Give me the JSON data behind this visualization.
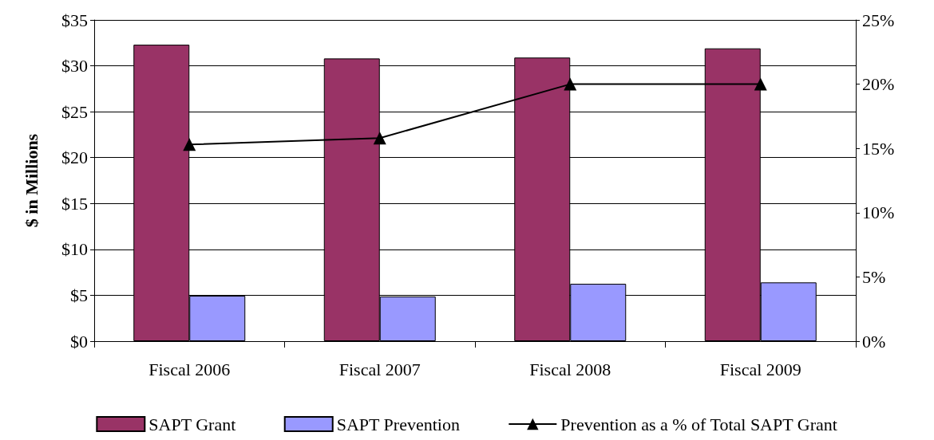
{
  "chart_data": {
    "type": "bar",
    "categories": [
      "Fiscal 2006",
      "Fiscal 2007",
      "Fiscal 2008",
      "Fiscal 2009"
    ],
    "ylabel": "$ in Millions",
    "ylim": [
      0,
      35
    ],
    "yticks": [
      {
        "value": 0,
        "label": "$0"
      },
      {
        "value": 5,
        "label": "$5"
      },
      {
        "value": 10,
        "label": "$10"
      },
      {
        "value": 15,
        "label": "$15"
      },
      {
        "value": 20,
        "label": "$20"
      },
      {
        "value": 25,
        "label": "$25"
      },
      {
        "value": 30,
        "label": "$30"
      },
      {
        "value": 35,
        "label": "$35"
      }
    ],
    "y2lim": [
      0,
      25
    ],
    "y2ticks": [
      {
        "value": 0,
        "label": "0%"
      },
      {
        "value": 5,
        "label": "5%"
      },
      {
        "value": 10,
        "label": "10%"
      },
      {
        "value": 15,
        "label": "15%"
      },
      {
        "value": 20,
        "label": "20%"
      },
      {
        "value": 25,
        "label": "25%"
      }
    ],
    "series": [
      {
        "name": "SAPT Grant",
        "color": "#993366",
        "values": [
          32.3,
          30.8,
          30.9,
          31.9
        ]
      },
      {
        "name": "SAPT Prevention",
        "color": "#9999ff",
        "values": [
          4.95,
          4.87,
          6.25,
          6.4
        ]
      },
      {
        "name": "Prevention as a % of Total SAPT Grant",
        "type": "line",
        "axis": "y2",
        "color": "#000000",
        "marker": "triangle",
        "line_style": "solid",
        "values": [
          15.3,
          15.8,
          20.0,
          20.0
        ]
      }
    ],
    "grid": "y",
    "legend": "bottom"
  }
}
